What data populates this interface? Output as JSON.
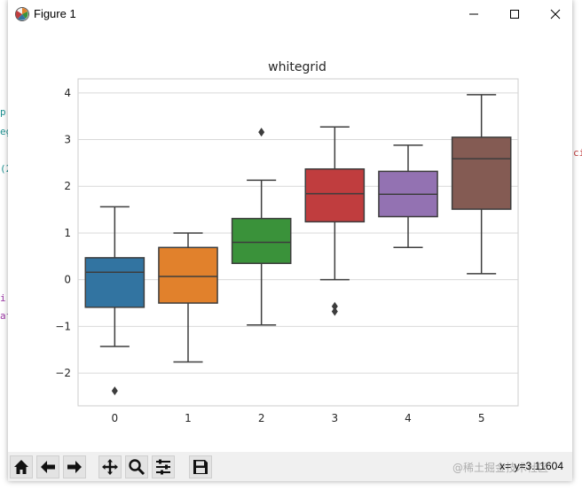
{
  "window": {
    "title": "Figure 1"
  },
  "background_fragments": [
    "p",
    "eg",
    "(2",
    "i",
    "af",
    "ci"
  ],
  "chart_data": {
    "type": "box",
    "title": "whitegrid",
    "xlabel": "",
    "ylabel": "",
    "categories": [
      "0",
      "1",
      "2",
      "3",
      "4",
      "5"
    ],
    "ylim": [
      -2.7,
      4.3
    ],
    "yticks": [
      -2,
      -1,
      0,
      1,
      2,
      3,
      4
    ],
    "ytick_labels": [
      "−2",
      "−1",
      "0",
      "1",
      "2",
      "3",
      "4"
    ],
    "grid": "horizontal",
    "boxes": [
      {
        "category": "0",
        "whisker_low": -1.43,
        "q1": -0.59,
        "median": 0.16,
        "q3": 0.47,
        "whisker_high": 1.56,
        "outliers": [
          -2.38
        ],
        "color": "#3274a1"
      },
      {
        "category": "1",
        "whisker_low": -1.76,
        "q1": -0.5,
        "median": 0.07,
        "q3": 0.69,
        "whisker_high": 1.0,
        "outliers": [],
        "color": "#e1812c"
      },
      {
        "category": "2",
        "whisker_low": -0.97,
        "q1": 0.35,
        "median": 0.8,
        "q3": 1.31,
        "whisker_high": 2.13,
        "outliers": [
          3.16
        ],
        "color": "#3a923a"
      },
      {
        "category": "3",
        "whisker_low": 0.0,
        "q1": 1.24,
        "median": 1.84,
        "q3": 2.37,
        "whisker_high": 3.27,
        "outliers": [
          -0.57,
          -0.68
        ],
        "color": "#c03d3e"
      },
      {
        "category": "4",
        "whisker_low": 0.69,
        "q1": 1.35,
        "median": 1.83,
        "q3": 2.32,
        "whisker_high": 2.88,
        "outliers": [],
        "color": "#9372b2"
      },
      {
        "category": "5",
        "whisker_low": 0.13,
        "q1": 1.51,
        "median": 2.59,
        "q3": 3.05,
        "whisker_high": 3.96,
        "outliers": [],
        "color": "#845b53"
      }
    ]
  },
  "toolbar": {
    "buttons": [
      "home-icon",
      "back-arrow-icon",
      "forward-arrow-icon",
      "pan-icon",
      "zoom-icon",
      "configure-subplots-icon",
      "save-icon"
    ],
    "coordinates": "x=  y=3.11604"
  },
  "watermark": "@稀土掘金技术社区"
}
